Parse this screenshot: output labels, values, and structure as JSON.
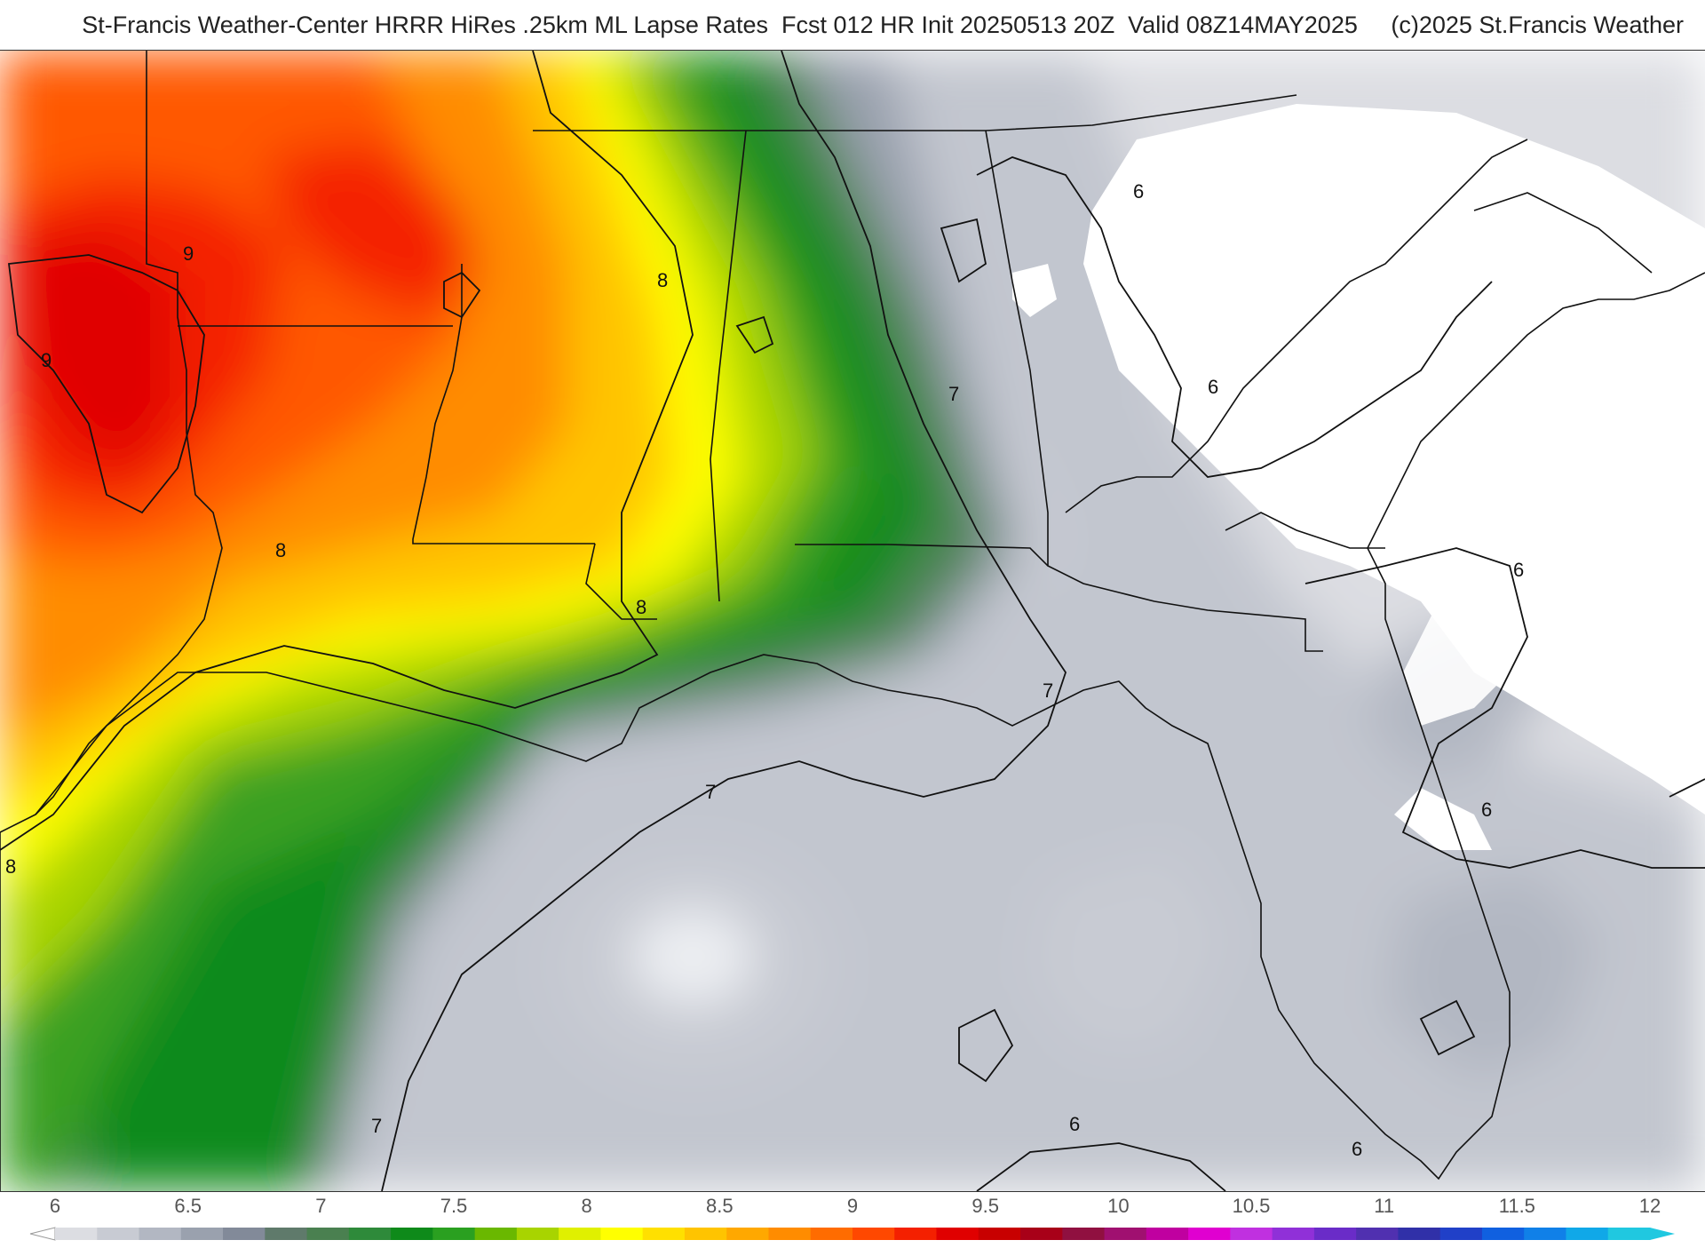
{
  "header": {
    "title": "St-Francis Weather-Center HRRR HiRes .25km ML Lapse Rates  Fcst 012 HR Init 20250513 20Z  Valid 08Z14MAY2025     (c)2025 St.Francis Weather"
  },
  "map": {
    "contour_labels": [
      "9",
      "9",
      "8",
      "8",
      "8",
      "8",
      "7",
      "7",
      "7",
      "7",
      "6",
      "6",
      "6",
      "6",
      "6",
      "6"
    ]
  },
  "colorbar": {
    "ticks": [
      "6",
      "6.5",
      "7",
      "7.5",
      "8",
      "8.5",
      "9",
      "9.5",
      "10",
      "10.5",
      "11",
      "11.5",
      "12"
    ],
    "colors": [
      "#dcdde2",
      "#c8cbd3",
      "#b2b7c2",
      "#9aa1ae",
      "#828a99",
      "#5f7a6b",
      "#4a8050",
      "#2e8a3a",
      "#0e8a1a",
      "#2aa020",
      "#6ab800",
      "#a8d400",
      "#e0f000",
      "#ffff00",
      "#ffe000",
      "#ffc400",
      "#ffa800",
      "#ff8c00",
      "#ff6c00",
      "#ff4800",
      "#f42000",
      "#e00000",
      "#c80000",
      "#a80018",
      "#901040",
      "#a01070",
      "#c000a0",
      "#e000d0",
      "#c030e0",
      "#9030d8",
      "#6a2cc8",
      "#5030b0",
      "#3030a8",
      "#2040c8",
      "#1060e0",
      "#1080e8",
      "#10a8e8",
      "#20c8e0"
    ]
  }
}
